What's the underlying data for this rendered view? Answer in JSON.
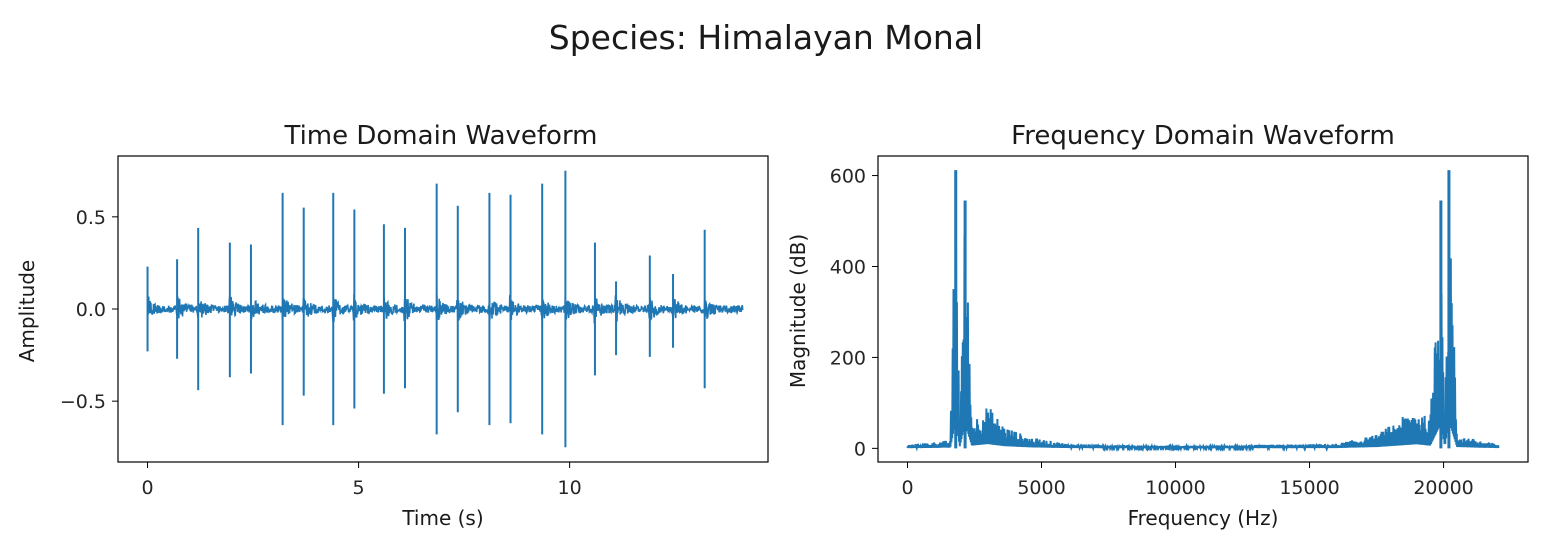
{
  "figure": {
    "suptitle": "Species: Himalayan Monal"
  },
  "colors": {
    "series": "#1f77b4",
    "axes": "#000000",
    "background": "#ffffff"
  },
  "chart_data": [
    {
      "type": "line",
      "title": "Time Domain Waveform",
      "xlabel": "Time (s)",
      "ylabel": "Amplitude",
      "xlim": [
        -0.7,
        14.7
      ],
      "ylim": [
        -0.83,
        0.83
      ],
      "xticks": [
        0,
        5,
        10
      ],
      "xtick_labels": [
        "0",
        "5",
        "10"
      ],
      "yticks": [
        -0.5,
        0.0,
        0.5
      ],
      "ytick_labels": [
        "−0.5",
        "0.0",
        "0.5"
      ],
      "grid": false,
      "series": [
        {
          "duration": 14.1,
          "noise_amplitude": 0.02,
          "peaks": [
            {
              "t": 0.0,
              "up": 0.23,
              "down": -0.23
            },
            {
              "t": 0.7,
              "up": 0.27,
              "down": -0.27
            },
            {
              "t": 1.2,
              "up": 0.44,
              "down": -0.44
            },
            {
              "t": 1.95,
              "up": 0.36,
              "down": -0.37
            },
            {
              "t": 2.45,
              "up": 0.35,
              "down": -0.35
            },
            {
              "t": 3.2,
              "up": 0.63,
              "down": -0.63
            },
            {
              "t": 3.7,
              "up": 0.55,
              "down": -0.47
            },
            {
              "t": 4.4,
              "up": 0.63,
              "down": -0.63
            },
            {
              "t": 4.9,
              "up": 0.54,
              "down": -0.54
            },
            {
              "t": 5.6,
              "up": 0.46,
              "down": -0.46
            },
            {
              "t": 6.1,
              "up": 0.44,
              "down": -0.43
            },
            {
              "t": 6.85,
              "up": 0.68,
              "down": -0.68
            },
            {
              "t": 7.35,
              "up": 0.56,
              "down": -0.56
            },
            {
              "t": 8.1,
              "up": 0.63,
              "down": -0.63
            },
            {
              "t": 8.6,
              "up": 0.62,
              "down": -0.62
            },
            {
              "t": 9.35,
              "up": 0.68,
              "down": -0.68
            },
            {
              "t": 9.9,
              "up": 0.75,
              "down": -0.75
            },
            {
              "t": 10.6,
              "up": 0.36,
              "down": -0.36
            },
            {
              "t": 11.1,
              "up": 0.15,
              "down": -0.25
            },
            {
              "t": 11.9,
              "up": 0.29,
              "down": -0.26
            },
            {
              "t": 12.45,
              "up": 0.19,
              "down": -0.21
            },
            {
              "t": 13.2,
              "up": 0.43,
              "down": -0.43
            }
          ]
        }
      ]
    },
    {
      "type": "line",
      "title": "Frequency Domain Waveform",
      "xlabel": "Frequency (Hz)",
      "ylabel": "Magnitude (dB)",
      "xlim": [
        -1100,
        23150
      ],
      "ylim": [
        -30,
        643
      ],
      "xticks": [
        0,
        5000,
        10000,
        15000,
        20000
      ],
      "xtick_labels": [
        "0",
        "5000",
        "10000",
        "15000",
        "20000"
      ],
      "yticks": [
        0,
        200,
        400,
        600
      ],
      "ytick_labels": [
        "0",
        "200",
        "400",
        "600"
      ],
      "grid": false,
      "series": [
        {
          "x_max": 22050,
          "envelope": [
            [
              0,
              8
            ],
            [
              1000,
              14
            ],
            [
              1600,
              18
            ],
            [
              1800,
              612
            ],
            [
              1950,
              40
            ],
            [
              2150,
              545
            ],
            [
              2400,
              60
            ],
            [
              3000,
              95
            ],
            [
              3600,
              50
            ],
            [
              4500,
              25
            ],
            [
              6000,
              10
            ],
            [
              10000,
              5
            ],
            [
              16000,
              10
            ],
            [
              17500,
              30
            ],
            [
              18500,
              70
            ],
            [
              19000,
              90
            ],
            [
              19500,
              60
            ],
            [
              19900,
              545
            ],
            [
              20050,
              40
            ],
            [
              20200,
              612
            ],
            [
              20500,
              30
            ],
            [
              21500,
              15
            ],
            [
              22050,
              10
            ]
          ]
        }
      ]
    }
  ]
}
